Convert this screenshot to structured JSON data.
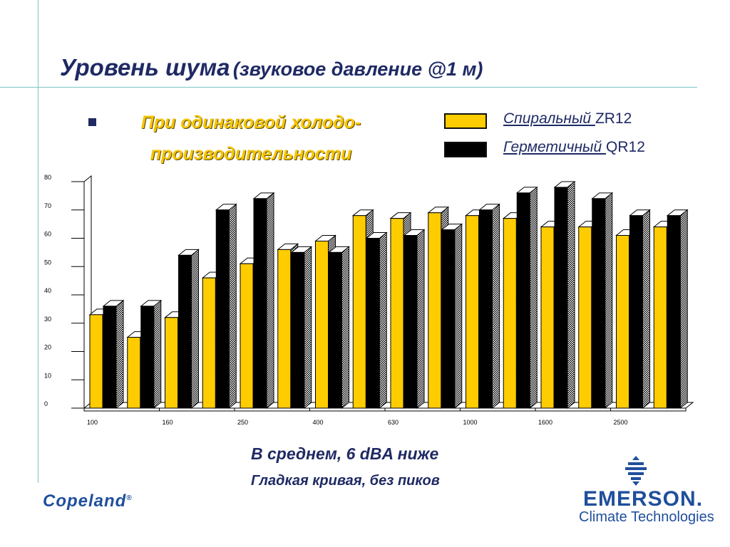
{
  "slide": {
    "title_main": "Уровень шума",
    "title_sub": "(звуковое давление @1 м)",
    "subtitle_line1": "При одинаковой холодо-",
    "subtitle_line2": "производительности",
    "note1": "В среднем, 6 dBA ниже",
    "note2": "Гладкая кривая,  без пиков"
  },
  "legend": [
    {
      "underlined": "Спиральный ",
      "model": "ZR12",
      "color": "#ffcc00"
    },
    {
      "underlined": "Герметичный ",
      "model": "QR12",
      "color": "#000000"
    }
  ],
  "brand": {
    "copeland": "Copeland",
    "copeland_mark": "®",
    "emerson": "EMERSON",
    "emerson_mark": ".",
    "climate": "Climate Technologies"
  },
  "chart_data": {
    "type": "bar",
    "title": "",
    "xlabel": "",
    "ylabel": "",
    "ylim": [
      0,
      80
    ],
    "y_ticks": [
      0,
      10,
      20,
      30,
      40,
      50,
      60,
      70,
      80
    ],
    "x_tick_labels": [
      "100",
      "160",
      "250",
      "400",
      "630",
      "1000",
      "1600",
      "2500"
    ],
    "categories": [
      "1",
      "2",
      "3",
      "4",
      "5",
      "6",
      "7",
      "8",
      "9",
      "10",
      "11",
      "12",
      "13",
      "14",
      "15",
      "16"
    ],
    "series": [
      {
        "name": "Спиральный ZR12",
        "color": "#ffcc00",
        "values": [
          33,
          25,
          32,
          46,
          51,
          56,
          59,
          68,
          67,
          69,
          68,
          67,
          64,
          64,
          61,
          64
        ]
      },
      {
        "name": "Герметичный QR12",
        "color": "#000000",
        "values": [
          36,
          36,
          54,
          70,
          74,
          55,
          55,
          60,
          61,
          63,
          70,
          76,
          78,
          74,
          68,
          68
        ]
      }
    ]
  }
}
